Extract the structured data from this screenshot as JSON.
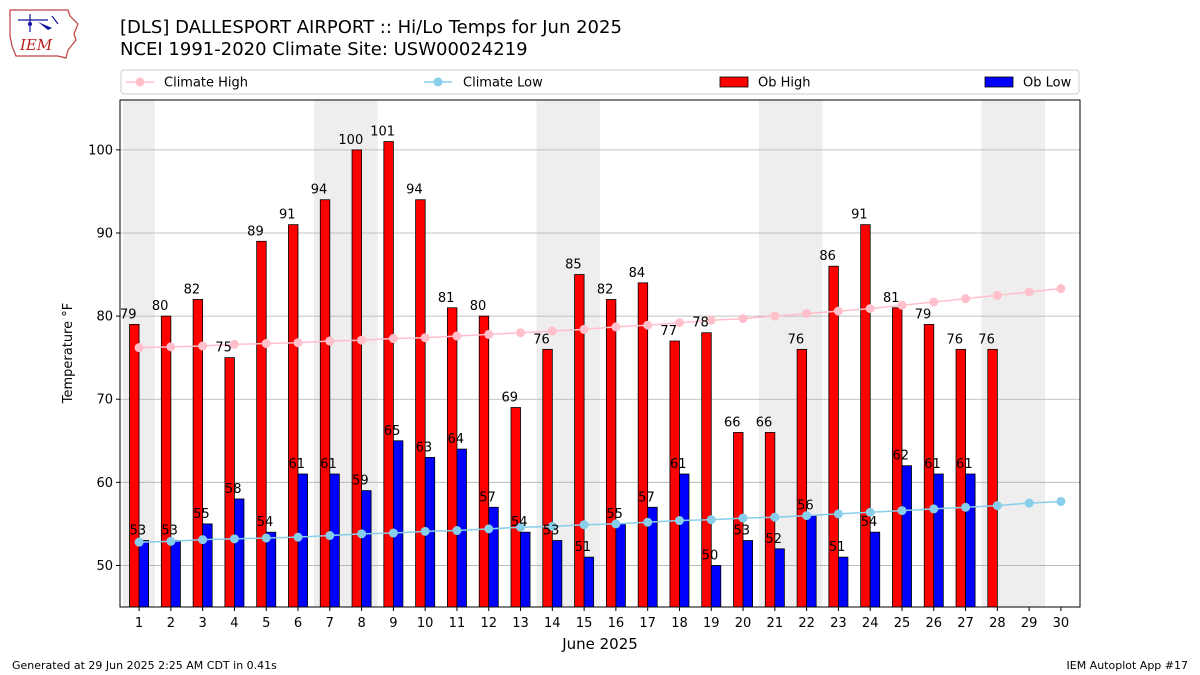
{
  "header": {
    "title_line1": "[DLS] DALLESPORT AIRPORT :: Hi/Lo Temps for Jun 2025",
    "title_line2": "NCEI 1991-2020 Climate Site: USW00024219",
    "logo_text": "IEM"
  },
  "footer": {
    "generated": "Generated at 29 Jun 2025 2:25 AM CDT in 0.41s",
    "app": "IEM Autoplot App #17"
  },
  "colors": {
    "ob_high": "#ff0000",
    "ob_low": "#0000ff",
    "climate_high": "#ffc0cb",
    "climate_low": "#87ceeb",
    "weekend_shade": "#eeeeee",
    "grid": "#b0b0b0"
  },
  "chart_data": {
    "type": "bar",
    "xlabel": "June 2025",
    "ylabel": "Temperature °F",
    "ylim": [
      45,
      106
    ],
    "yticks": [
      50,
      60,
      70,
      80,
      90,
      100
    ],
    "grid": "horizontal",
    "legend_position": "top",
    "categories": [
      "1",
      "2",
      "3",
      "4",
      "5",
      "6",
      "7",
      "8",
      "9",
      "10",
      "11",
      "12",
      "13",
      "14",
      "15",
      "16",
      "17",
      "18",
      "19",
      "20",
      "21",
      "22",
      "23",
      "24",
      "25",
      "26",
      "27",
      "28",
      "29",
      "30"
    ],
    "weekend_days": [
      1,
      7,
      8,
      14,
      15,
      21,
      22,
      28,
      29
    ],
    "series": [
      {
        "name": "Climate High",
        "kind": "line",
        "values": [
          76.2,
          76.3,
          76.4,
          76.6,
          76.7,
          76.8,
          77.0,
          77.1,
          77.3,
          77.4,
          77.6,
          77.8,
          78.0,
          78.2,
          78.4,
          78.7,
          78.9,
          79.2,
          79.5,
          79.7,
          80.0,
          80.3,
          80.6,
          80.9,
          81.3,
          81.7,
          82.1,
          82.5,
          82.9,
          83.3
        ]
      },
      {
        "name": "Climate Low",
        "kind": "line",
        "values": [
          52.8,
          52.9,
          53.1,
          53.2,
          53.3,
          53.4,
          53.6,
          53.8,
          53.9,
          54.1,
          54.2,
          54.4,
          54.6,
          54.7,
          54.9,
          55.0,
          55.2,
          55.4,
          55.5,
          55.7,
          55.8,
          56.0,
          56.2,
          56.4,
          56.6,
          56.8,
          57.0,
          57.2,
          57.5,
          57.7
        ]
      },
      {
        "name": "Ob High",
        "kind": "bar",
        "values": [
          79,
          80,
          82,
          75,
          89,
          91,
          94,
          100,
          101,
          94,
          81,
          80,
          69,
          76,
          85,
          82,
          84,
          77,
          78,
          66,
          66,
          76,
          86,
          91,
          81,
          79,
          76,
          76,
          null,
          null
        ]
      },
      {
        "name": "Ob Low",
        "kind": "bar",
        "values": [
          53,
          53,
          55,
          58,
          54,
          61,
          61,
          59,
          65,
          63,
          64,
          57,
          54,
          53,
          51,
          55,
          57,
          61,
          50,
          53,
          52,
          56,
          51,
          54,
          62,
          61,
          61,
          null,
          null,
          null
        ]
      }
    ]
  }
}
